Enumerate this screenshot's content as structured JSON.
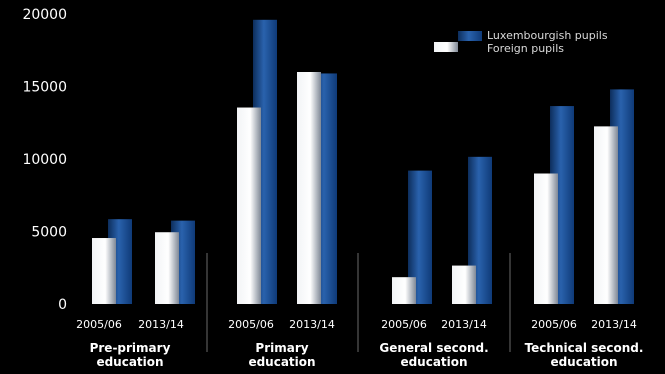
{
  "chart_data": {
    "type": "bar",
    "title": "",
    "xlabel": "",
    "ylabel": "",
    "ylim": [
      0,
      20000
    ],
    "yticks": [
      "0",
      "5000",
      "10000",
      "15000",
      "20000"
    ],
    "grid": false,
    "legend_position": "top-right",
    "groups": [
      {
        "label_lines": [
          "Pre-primary",
          "education"
        ],
        "years": [
          "2005/06",
          "2013/14"
        ]
      },
      {
        "label_lines": [
          "Primary",
          "education"
        ],
        "years": [
          "2005/06",
          "2013/14"
        ]
      },
      {
        "label_lines": [
          "General second.",
          "education"
        ],
        "years": [
          "2005/06",
          "2013/14"
        ]
      },
      {
        "label_lines": [
          "Technical second.",
          "education"
        ],
        "years": [
          "2005/06",
          "2013/14"
        ]
      }
    ],
    "series": [
      {
        "name": "Luxembourgish pupils",
        "color": "#2a5ea8",
        "values": [
          5850,
          5750,
          19600,
          15900,
          9200,
          10150,
          13650,
          14800
        ]
      },
      {
        "name": "Foreign pupils",
        "color": "#e8ecf0",
        "values": [
          4550,
          4950,
          13550,
          16000,
          1850,
          2650,
          9000,
          12250
        ]
      }
    ]
  }
}
